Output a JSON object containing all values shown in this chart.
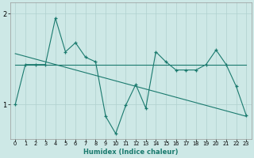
{
  "xlabel": "Humidex (Indice chaleur)",
  "bg_color": "#cde8e6",
  "line_color": "#1a7a6e",
  "grid_color": "#b0d0ce",
  "xlim": [
    -0.5,
    23.5
  ],
  "ylim": [
    0.62,
    2.12
  ],
  "yticks": [
    1,
    2
  ],
  "xticks": [
    0,
    1,
    2,
    3,
    4,
    5,
    6,
    7,
    8,
    9,
    10,
    11,
    12,
    13,
    14,
    15,
    16,
    17,
    18,
    19,
    20,
    21,
    22,
    23
  ],
  "main_x": [
    0,
    1,
    2,
    3,
    4,
    5,
    6,
    7,
    8,
    9,
    10,
    11,
    12,
    13,
    14,
    15,
    16,
    17,
    18,
    19,
    20,
    21,
    22,
    23
  ],
  "main_y": [
    1.0,
    1.44,
    1.44,
    1.44,
    1.95,
    1.58,
    1.68,
    1.52,
    1.47,
    0.87,
    0.68,
    0.99,
    1.22,
    0.96,
    1.58,
    1.47,
    1.38,
    1.38,
    1.38,
    1.44,
    1.6,
    1.44,
    1.2,
    0.88
  ],
  "line1_x": [
    0,
    23
  ],
  "line1_y": [
    1.44,
    1.44
  ],
  "line2_x": [
    0,
    23
  ],
  "line2_y": [
    1.56,
    0.87
  ]
}
